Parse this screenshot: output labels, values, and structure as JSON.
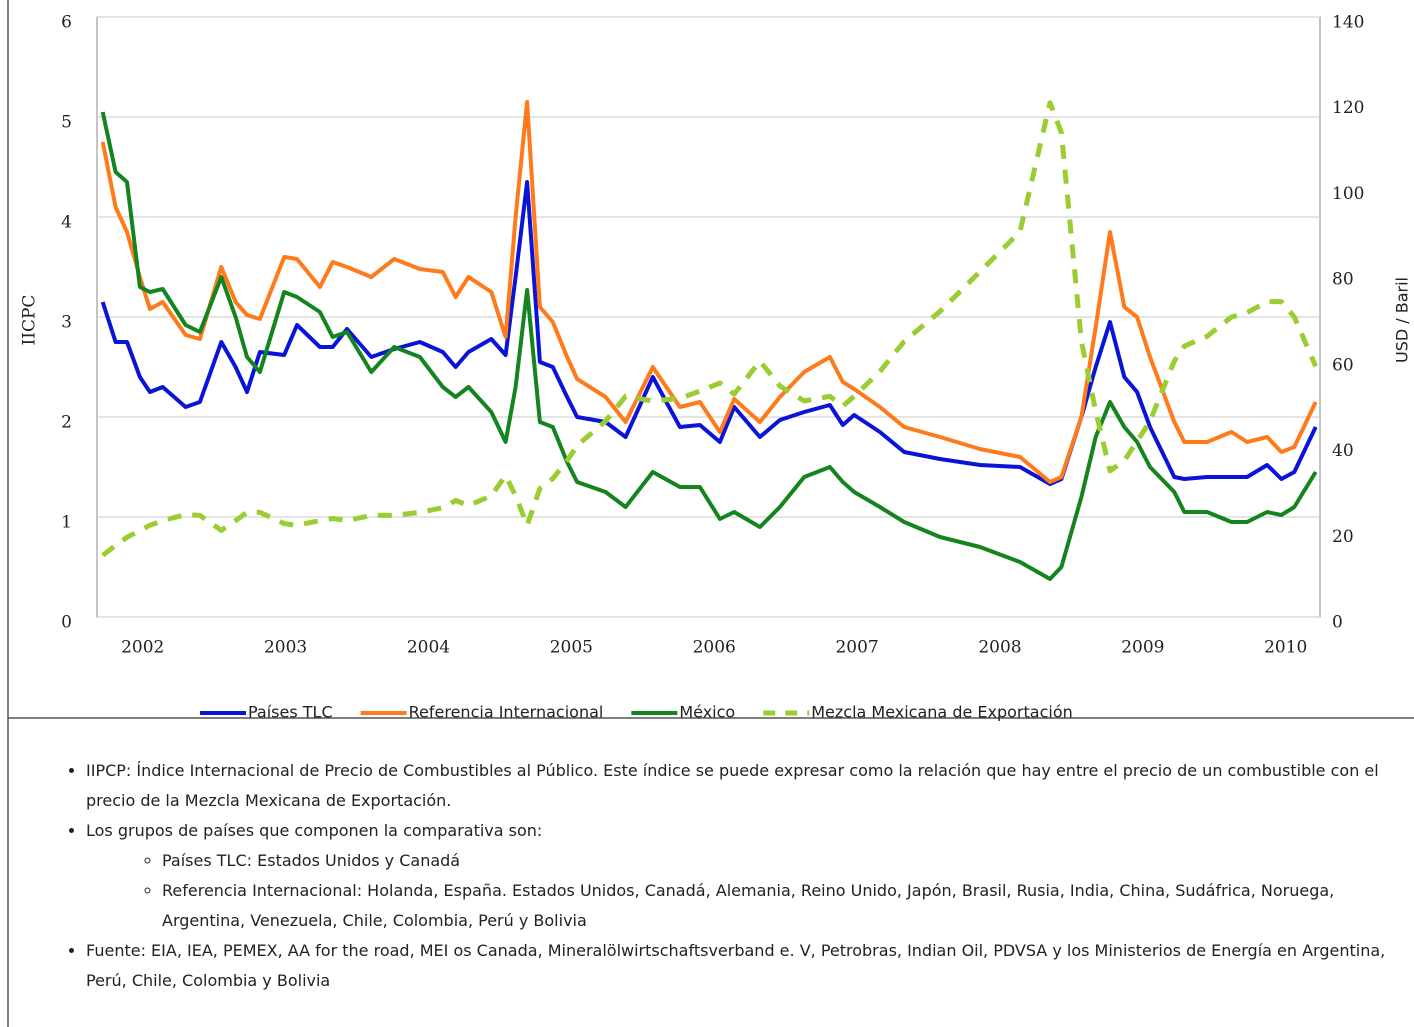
{
  "chart_data": {
    "type": "line",
    "ylabel": "IICPC",
    "y2label": "USD / Baril",
    "x": [
      2001.72,
      2001.81,
      2001.89,
      2001.98,
      2002.05,
      2002.14,
      2002.3,
      2002.4,
      2002.55,
      2002.65,
      2002.73,
      2002.82,
      2002.99,
      2003.08,
      2003.24,
      2003.33,
      2003.43,
      2003.6,
      2003.76,
      2003.94,
      2004.1,
      2004.19,
      2004.28,
      2004.44,
      2004.54,
      2004.61,
      2004.69,
      2004.78,
      2004.87,
      2004.97,
      2005.04,
      2005.24,
      2005.38,
      2005.57,
      2005.76,
      2005.9,
      2006.04,
      2006.14,
      2006.32,
      2006.46,
      2006.63,
      2006.81,
      2006.9,
      2006.98,
      2007.16,
      2007.33,
      2007.58,
      2007.86,
      2008.14,
      2008.35,
      2008.43,
      2008.57,
      2008.67,
      2008.77,
      2008.87,
      2008.96,
      2009.05,
      2009.22,
      2009.29,
      2009.45,
      2009.62,
      2009.73,
      2009.87,
      2009.97,
      2010.06,
      2010.21
    ],
    "series": [
      {
        "name": "Países TLC",
        "color": "#0a14d8",
        "values": [
          3.15,
          2.75,
          2.75,
          2.4,
          2.25,
          2.3,
          2.1,
          2.15,
          2.75,
          2.5,
          2.25,
          2.65,
          2.62,
          2.92,
          2.7,
          2.7,
          2.88,
          2.6,
          2.68,
          2.75,
          2.65,
          2.5,
          2.65,
          2.78,
          2.62,
          3.4,
          4.35,
          2.55,
          2.5,
          2.2,
          2.0,
          1.95,
          1.8,
          2.4,
          1.9,
          1.92,
          1.75,
          2.1,
          1.8,
          1.97,
          2.05,
          2.12,
          1.92,
          2.02,
          1.85,
          1.65,
          1.58,
          1.52,
          1.5,
          1.33,
          1.38,
          2.0,
          2.5,
          2.95,
          2.4,
          2.25,
          1.9,
          1.4,
          1.38,
          1.4,
          1.4,
          1.4,
          1.52,
          1.38,
          1.45,
          1.9
        ]
      },
      {
        "name": "Referencia Internacional",
        "color": "#ff7a1a",
        "values": [
          4.75,
          4.1,
          3.85,
          3.4,
          3.08,
          3.15,
          2.82,
          2.78,
          3.5,
          3.15,
          3.02,
          2.98,
          3.6,
          3.58,
          3.3,
          3.55,
          3.5,
          3.4,
          3.58,
          3.48,
          3.45,
          3.2,
          3.4,
          3.25,
          2.8,
          4.0,
          5.15,
          3.1,
          2.95,
          2.6,
          2.38,
          2.2,
          1.95,
          2.5,
          2.1,
          2.15,
          1.85,
          2.18,
          1.95,
          2.2,
          2.45,
          2.6,
          2.35,
          2.28,
          2.1,
          1.9,
          1.8,
          1.68,
          1.6,
          1.35,
          1.4,
          2.0,
          2.9,
          3.85,
          3.1,
          3.0,
          2.6,
          1.95,
          1.75,
          1.75,
          1.85,
          1.75,
          1.8,
          1.65,
          1.7,
          2.15
        ]
      },
      {
        "name": "México",
        "color": "#14851e",
        "values": [
          5.05,
          4.45,
          4.35,
          3.3,
          3.25,
          3.28,
          2.92,
          2.85,
          3.4,
          3.0,
          2.6,
          2.45,
          3.25,
          3.2,
          3.05,
          2.8,
          2.85,
          2.45,
          2.7,
          2.6,
          2.3,
          2.2,
          2.3,
          2.05,
          1.75,
          2.3,
          3.27,
          1.95,
          1.9,
          1.55,
          1.35,
          1.25,
          1.1,
          1.45,
          1.3,
          1.3,
          0.98,
          1.05,
          0.9,
          1.1,
          1.4,
          1.5,
          1.35,
          1.25,
          1.1,
          0.95,
          0.8,
          0.7,
          0.55,
          0.38,
          0.5,
          1.2,
          1.8,
          2.15,
          1.9,
          1.75,
          1.5,
          1.25,
          1.05,
          1.05,
          0.95,
          0.95,
          1.05,
          1.02,
          1.1,
          1.45
        ]
      },
      {
        "name": "Mezcla Mexicana de Exportación",
        "color": "#9acd32",
        "dashed": true,
        "axis": "y2",
        "values": [
          14.4,
          16.7,
          18.6,
          20.2,
          21.4,
          22.5,
          23.9,
          23.7,
          20.2,
          22.5,
          24.4,
          24.4,
          21.8,
          21.4,
          22.5,
          23,
          22.5,
          23.7,
          23.7,
          24.4,
          25.5,
          27.2,
          26,
          28.3,
          33,
          28.3,
          21.4,
          30,
          32.3,
          36.5,
          40,
          45.7,
          51.5,
          50.4,
          51,
          52.7,
          54.6,
          52,
          59.7,
          53.9,
          50.4,
          51.5,
          49.2,
          51.5,
          57.3,
          64.3,
          71.3,
          80.6,
          89.9,
          120,
          113,
          64.3,
          48,
          34.1,
          36.5,
          41,
          45.7,
          59.7,
          63.2,
          65.5,
          70,
          71,
          73.6,
          73.6,
          70,
          58.5
        ]
      }
    ],
    "xlim": [
      2001.68,
      2010.24
    ],
    "xticks": [
      2002,
      2003,
      2004,
      2005,
      2006,
      2007,
      2008,
      2009,
      2010
    ],
    "ylim": [
      0,
      6
    ],
    "yticks": [
      0,
      1,
      2,
      3,
      4,
      5,
      6
    ],
    "y2lim": [
      0,
      140
    ],
    "y2ticks": [
      0,
      20,
      40,
      60,
      80,
      100,
      120,
      140
    ],
    "grid": true,
    "legend": "bottom"
  },
  "notes": [
    {
      "text": "IIPCP: Índice Internacional de Precio de Combustibles al Público. Este índice se puede expresar como la relación que hay entre el precio de un combustible con el precio de la Mezcla Mexicana de Exportación."
    },
    {
      "text": "Los grupos de países que componen la comparativa son:",
      "items": [
        "Países TLC: Estados Unidos y Canadá",
        "Referencia Internacional: Holanda, España. Estados Unidos, Canadá, Alemania, Reino Unido, Japón, Brasil, Rusia, India, China, Sudáfrica, Noruega, Argentina, Venezuela, Chile, Colombia, Perú y Bolivia"
      ]
    },
    {
      "text": "Fuente: EIA, IEA, PEMEX, AA for the road, MEI os Canada, Mineralölwirtschaftsverband e. V, Petrobras, Indian Oil, PDVSA y los Ministerios de Energía en Argentina, Perú, Chile, Colombia y Bolivia"
    }
  ]
}
